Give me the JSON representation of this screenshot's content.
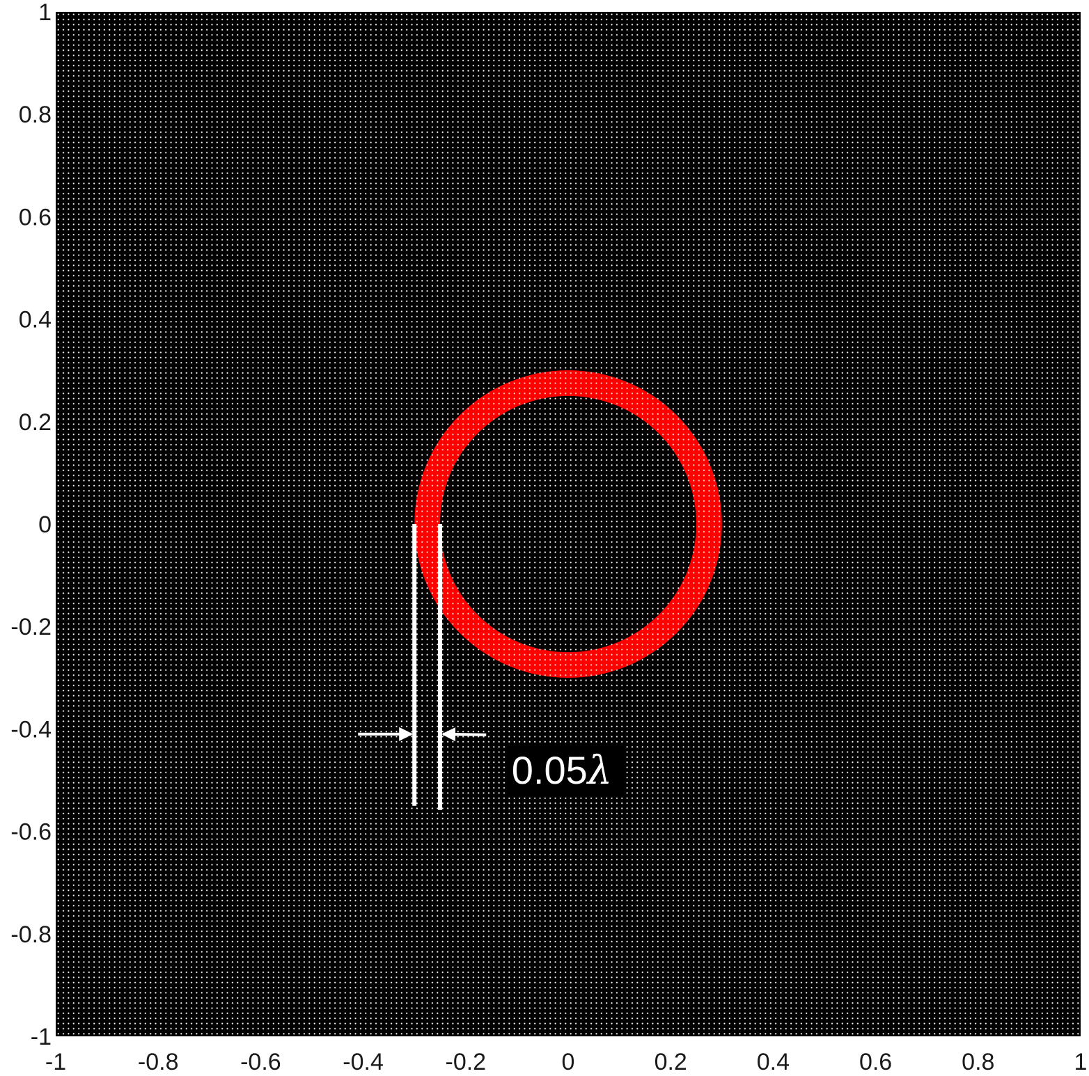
{
  "chart_data": {
    "type": "scatter",
    "title": "",
    "xlabel": "",
    "ylabel": "",
    "xlim": [
      -1,
      1
    ],
    "ylim": [
      -1,
      1
    ],
    "x_ticks": [
      "-1",
      "-0.8",
      "-0.6",
      "-0.4",
      "-0.2",
      "0",
      "0.2",
      "0.4",
      "0.6",
      "0.8",
      "1"
    ],
    "y_ticks": [
      "1",
      "0.8",
      "0.6",
      "0.4",
      "0.2",
      "0",
      "-0.2",
      "-0.4",
      "-0.6",
      "-0.8",
      "-1"
    ],
    "grid": false,
    "series": [
      {
        "kind": "grid",
        "description_in_values": "uniform square grid of points covering the full axes",
        "x_range": [
          -1,
          1
        ],
        "y_range": [
          -1,
          1
        ],
        "spacing": 0.01,
        "color": "#ffffff"
      },
      {
        "kind": "ring",
        "center": [
          0,
          0
        ],
        "inner_radius": 0.25,
        "outer_radius": 0.3,
        "color": "#ff0000"
      }
    ],
    "background_color": "#000000",
    "annotations": [
      {
        "text": "0.05",
        "symbol": "λ",
        "marker_x": [
          -0.3,
          -0.25
        ],
        "marker_y_range": [
          -0.55,
          0.0
        ],
        "arrow_y": -0.41,
        "arrow_tails_x": [
          -0.41,
          -0.16
        ],
        "text_position": [
          -0.09,
          -0.5
        ],
        "color": "#ffffff"
      }
    ]
  }
}
